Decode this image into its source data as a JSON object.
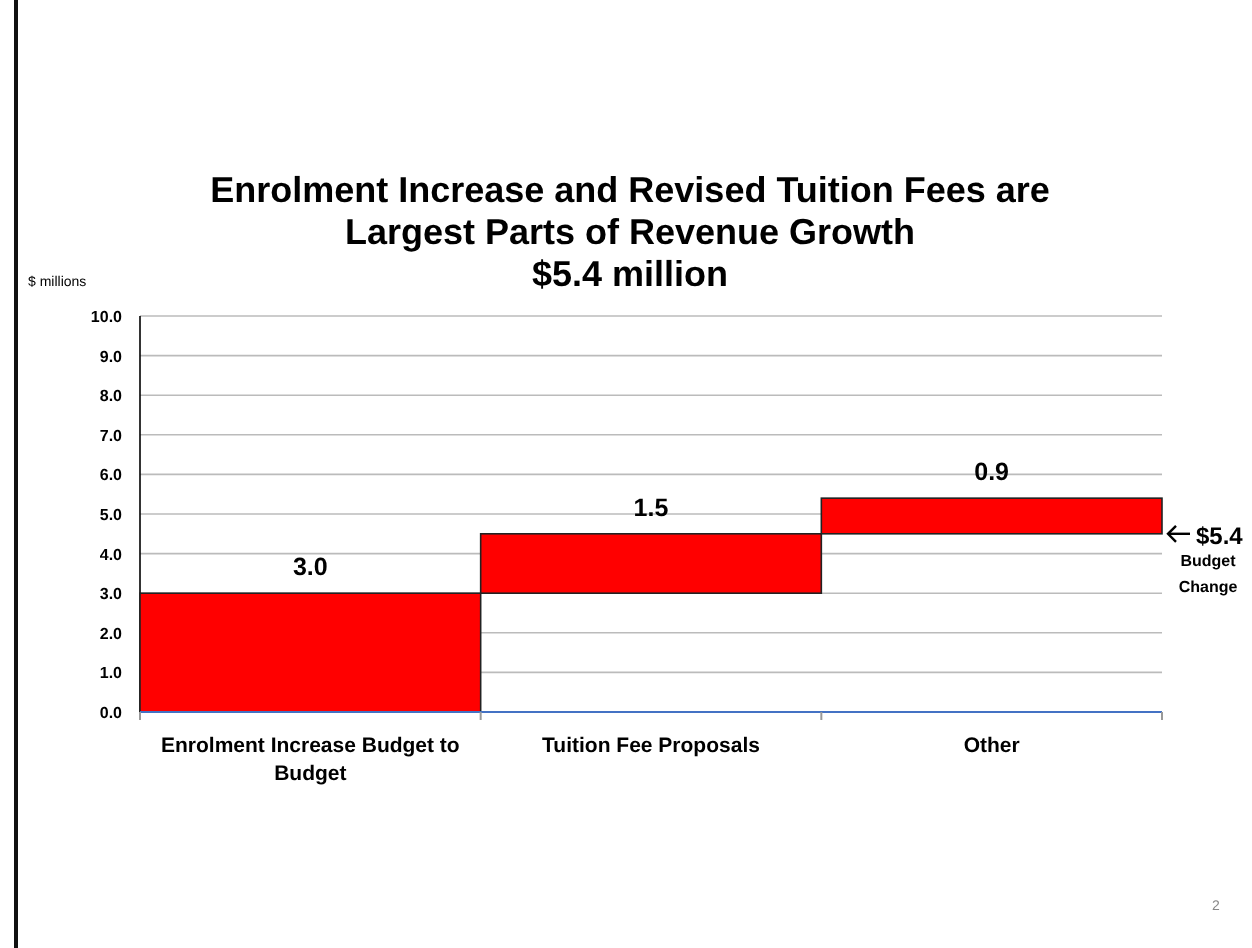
{
  "chart_data": {
    "type": "bar",
    "title": "Enrolment Increase and Revised Tuition Fees are Largest Parts of Revenue Growth",
    "subtitle": "$5.4 million",
    "ylabel": "$ millions",
    "categories": [
      "Enrolment Increase Budget to Budget",
      "Tuition Fee Proposals",
      "Other"
    ],
    "values": [
      3.0,
      1.5,
      0.9
    ],
    "base": [
      0,
      3.0,
      4.5
    ],
    "color": "#ff0000",
    "value_labels": [
      "3.0",
      "1.5",
      "0.9"
    ],
    "ylim": [
      0,
      10
    ],
    "yticks": [
      {
        "value": 0,
        "label": "0.0"
      },
      {
        "value": 1,
        "label": "1.0"
      },
      {
        "value": 2,
        "label": "2.0"
      },
      {
        "value": 3,
        "label": "3.0"
      },
      {
        "value": 4,
        "label": "4.0"
      },
      {
        "value": 5,
        "label": "5.0"
      },
      {
        "value": 6,
        "label": "6.0"
      },
      {
        "value": 7,
        "label": "7.0"
      },
      {
        "value": 8,
        "label": "8.0"
      },
      {
        "value": 9,
        "label": "9.0"
      },
      {
        "value": 10,
        "label": "10.0"
      }
    ],
    "grid": "y",
    "annotations": [
      "$5.4",
      "Budget Change",
      "2"
    ]
  }
}
